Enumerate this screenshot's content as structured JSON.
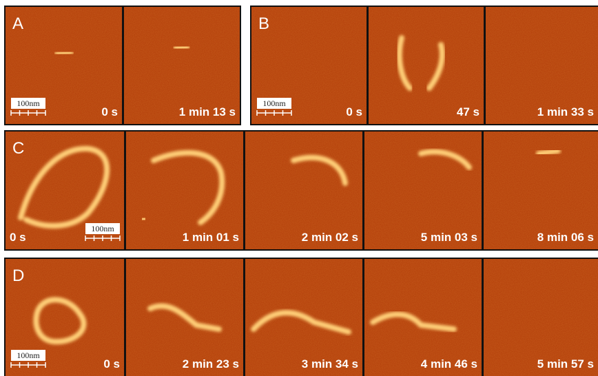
{
  "panels": [
    {
      "label": "A",
      "scale_bar": "100nm",
      "frames": [
        {
          "time": "0 s"
        },
        {
          "time": "1 min 13 s"
        }
      ]
    },
    {
      "label": "B",
      "scale_bar": "100nm",
      "frames": [
        {
          "time": "0 s"
        },
        {
          "time": "47 s"
        },
        {
          "time": "1 min 33 s"
        }
      ]
    },
    {
      "label": "C",
      "scale_bar": "100nm",
      "frames": [
        {
          "time": "0 s"
        },
        {
          "time": "1 min 01 s"
        },
        {
          "time": "2 min 02 s"
        },
        {
          "time": "5 min 03 s"
        },
        {
          "time": "8 min 06 s"
        }
      ]
    },
    {
      "label": "D",
      "scale_bar": "100nm",
      "frames": [
        {
          "time": "0 s"
        },
        {
          "time": "2 min 23 s"
        },
        {
          "time": "3 min 34 s"
        },
        {
          "time": "4 min 46 s"
        },
        {
          "time": "5 min 57 s"
        }
      ]
    }
  ]
}
